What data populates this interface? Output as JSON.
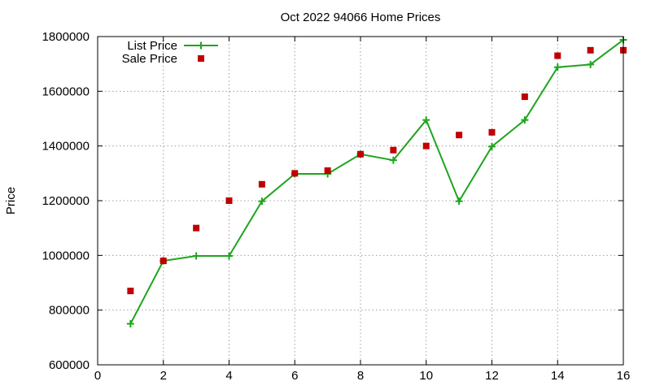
{
  "chart_data": {
    "type": "line",
    "title": "Oct 2022 94066 Home Prices",
    "xlabel": "",
    "ylabel": "Price",
    "xlim": [
      0,
      16
    ],
    "ylim": [
      600000,
      1800000
    ],
    "x_ticks": [
      0,
      2,
      4,
      6,
      8,
      10,
      12,
      14,
      16
    ],
    "y_ticks": [
      600000,
      800000,
      1000000,
      1200000,
      1400000,
      1600000,
      1800000
    ],
    "x_tick_labels": [
      "0",
      "2",
      "4",
      "6",
      "8",
      "10",
      "12",
      "14",
      "16"
    ],
    "y_tick_labels": [
      "600000",
      "800000",
      "1000000",
      "1200000",
      "1400000",
      "1600000",
      "1800000"
    ],
    "grid": true,
    "legend_position": "top-left",
    "series": [
      {
        "name": "List Price",
        "style": "linespoints",
        "marker": "plus",
        "color": "#1ea51e",
        "x": [
          1,
          2,
          3,
          4,
          5,
          6,
          7,
          8,
          9,
          10,
          11,
          12,
          13,
          14,
          15,
          16
        ],
        "y": [
          750000,
          980000,
          998000,
          998000,
          1198000,
          1298000,
          1298000,
          1370000,
          1348000,
          1495000,
          1198000,
          1398000,
          1495000,
          1688000,
          1698000,
          1788000
        ]
      },
      {
        "name": "Sale Price",
        "style": "points",
        "marker": "square",
        "color": "#c00000",
        "x": [
          1,
          2,
          3,
          4,
          5,
          6,
          7,
          8,
          9,
          10,
          11,
          12,
          13,
          14,
          15,
          16
        ],
        "y": [
          870000,
          980000,
          1100000,
          1200000,
          1260000,
          1300000,
          1310000,
          1370000,
          1385000,
          1400000,
          1440000,
          1450000,
          1580000,
          1730000,
          1750000,
          1750000
        ]
      }
    ]
  }
}
